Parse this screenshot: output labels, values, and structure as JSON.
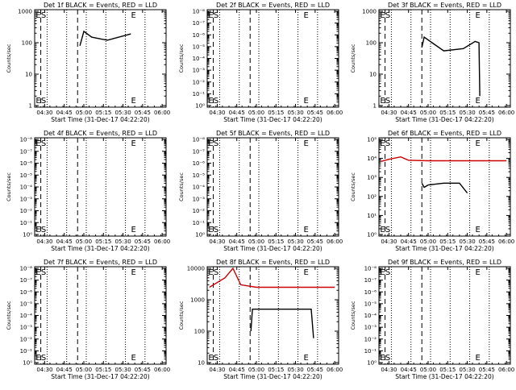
{
  "chart_data": [
    {
      "type": "line",
      "det": "1f",
      "title": "Det 1f BLACK = Events, RED = LLD",
      "ylabel": "Counts/sec",
      "xlabel": "Start Time (31-Dec-17 04:22:20)",
      "x_ticks": [
        "04:30",
        "04:45",
        "05:00",
        "05:15",
        "05:30",
        "05:45",
        "06:00"
      ],
      "y_scale": "log",
      "y_ticks": [
        "1",
        "10",
        "100",
        "1000"
      ],
      "markers": [
        {
          "label": "E",
          "time": "04:25"
        },
        {
          "label": "S",
          "time": "04:29"
        },
        {
          "label": "E",
          "time": "05:38"
        }
      ],
      "series": [
        {
          "color": "#000000",
          "values": [
            [
              4.95,
              80
            ],
            [
              5.0,
              230
            ],
            [
              5.1,
              150
            ],
            [
              5.3,
              120
            ],
            [
              5.6,
              190
            ]
          ]
        }
      ]
    },
    {
      "type": "line",
      "det": "2f",
      "title": "Det 2f BLACK = Events, RED = LLD",
      "ylabel": "Counts/sec",
      "xlabel": "Start Time (31-Dec-17 04:22:20)",
      "x_ticks": [
        "04:30",
        "04:45",
        "05:00",
        "05:15",
        "05:30",
        "05:45",
        "06:00"
      ],
      "y_scale": "log",
      "y_ticks": [
        "10⁰",
        "10⁻¹",
        "10⁻²",
        "10⁻³",
        "10⁻⁴",
        "10⁻⁵",
        "10⁻⁶",
        "10⁻⁷",
        "10⁻⁸"
      ],
      "markers": [
        {
          "label": "E",
          "time": "04:25"
        },
        {
          "label": "S",
          "time": "04:29"
        },
        {
          "label": "E",
          "time": "05:38"
        }
      ],
      "series": []
    },
    {
      "type": "line",
      "det": "3f",
      "title": "Det 3f BLACK = Events, RED = LLD",
      "ylabel": "Counts/sec",
      "xlabel": "Start Time (31-Dec-17 04:22:20)",
      "x_ticks": [
        "04:30",
        "04:45",
        "05:00",
        "05:15",
        "05:30",
        "05:45",
        "06:00"
      ],
      "y_scale": "log",
      "y_ticks": [
        "1",
        "10",
        "100",
        "1000"
      ],
      "markers": [
        {
          "label": "E",
          "time": "04:25"
        },
        {
          "label": "S",
          "time": "04:29"
        },
        {
          "label": "E",
          "time": "05:38"
        }
      ],
      "series": [
        {
          "color": "#000000",
          "values": [
            [
              4.92,
              70
            ],
            [
              4.95,
              150
            ],
            [
              5.05,
              100
            ],
            [
              5.2,
              55
            ],
            [
              5.45,
              65
            ],
            [
              5.6,
              110
            ],
            [
              5.65,
              100
            ],
            [
              5.66,
              2
            ]
          ]
        }
      ]
    },
    {
      "type": "line",
      "det": "4f",
      "title": "Det 4f BLACK = Events, RED = LLD",
      "ylabel": "Counts/sec",
      "xlabel": "Start Time (31-Dec-17 04:22:20)",
      "x_ticks": [
        "04:30",
        "04:45",
        "05:00",
        "05:15",
        "05:30",
        "05:45",
        "06:00"
      ],
      "y_scale": "log",
      "y_ticks": [
        "10⁰",
        "10⁻¹",
        "10⁻²",
        "10⁻³",
        "10⁻⁴",
        "10⁻⁵",
        "10⁻⁶",
        "10⁻⁷",
        "10⁻⁸"
      ],
      "markers": [
        {
          "label": "E",
          "time": "04:25"
        },
        {
          "label": "S",
          "time": "04:29"
        },
        {
          "label": "E",
          "time": "05:38"
        }
      ],
      "series": []
    },
    {
      "type": "line",
      "det": "5f",
      "title": "Det 5f BLACK = Events, RED = LLD",
      "ylabel": "Counts/sec",
      "xlabel": "Start Time (31-Dec-17 04:22:20)",
      "x_ticks": [
        "04:30",
        "04:45",
        "05:00",
        "05:15",
        "05:30",
        "05:45",
        "06:00"
      ],
      "y_scale": "log",
      "y_ticks": [
        "10⁰",
        "10⁻¹",
        "10⁻²",
        "10⁻³",
        "10⁻⁴",
        "10⁻⁵",
        "10⁻⁶",
        "10⁻⁷",
        "10⁻⁸"
      ],
      "markers": [
        {
          "label": "E",
          "time": "04:25"
        },
        {
          "label": "S",
          "time": "04:29"
        },
        {
          "label": "E",
          "time": "05:38"
        }
      ],
      "series": []
    },
    {
      "type": "line",
      "det": "6f",
      "title": "Det 6f BLACK = Events, RED = LLD",
      "ylabel": "Counts/sec",
      "xlabel": "Start Time (31-Dec-17 04:22:20)",
      "x_ticks": [
        "04:30",
        "04:45",
        "05:00",
        "05:15",
        "05:30",
        "05:45",
        "06:00"
      ],
      "y_scale": "log",
      "y_ticks": [
        "10⁰",
        "10¹",
        "10²",
        "10³",
        "10⁴",
        "10⁵"
      ],
      "markers": [
        {
          "label": "E",
          "time": "04:25"
        },
        {
          "label": "S",
          "time": "04:29"
        },
        {
          "label": "E",
          "time": "05:38"
        }
      ],
      "series": [
        {
          "color": "#cc0000",
          "values": [
            [
              4.4,
              7000
            ],
            [
              4.5,
              9000
            ],
            [
              4.65,
              12000
            ],
            [
              4.75,
              8000
            ],
            [
              5.0,
              7500
            ],
            [
              6.0,
              7500
            ]
          ]
        },
        {
          "color": "#000000",
          "values": [
            [
              4.92,
              500
            ],
            [
              4.95,
              300
            ],
            [
              5.0,
              400
            ],
            [
              5.2,
              500
            ],
            [
              5.4,
              500
            ],
            [
              5.5,
              150
            ]
          ]
        }
      ]
    },
    {
      "type": "line",
      "det": "7f",
      "title": "Det 7f BLACK = Events, RED = LLD",
      "ylabel": "Counts/sec",
      "xlabel": "Start Time (31-Dec-17 04:22:20)",
      "x_ticks": [
        "04:30",
        "04:45",
        "05:00",
        "05:15",
        "05:30",
        "05:45",
        "06:00"
      ],
      "y_scale": "log",
      "y_ticks": [
        "10⁰",
        "10⁻¹",
        "10⁻²",
        "10⁻³",
        "10⁻⁴",
        "10⁻⁵",
        "10⁻⁶",
        "10⁻⁷",
        "10⁻⁸"
      ],
      "markers": [
        {
          "label": "E",
          "time": "04:25"
        },
        {
          "label": "S",
          "time": "04:29"
        },
        {
          "label": "E",
          "time": "05:38"
        }
      ],
      "series": []
    },
    {
      "type": "line",
      "det": "8f",
      "title": "Det 8f BLACK = Events, RED = LLD",
      "ylabel": "Counts/sec",
      "xlabel": "Start Time (31-Dec-17 04:22:20)",
      "x_ticks": [
        "04:30",
        "04:45",
        "05:00",
        "05:15",
        "05:30",
        "05:45",
        "06:00"
      ],
      "y_scale": "log",
      "y_ticks": [
        "10",
        "100",
        "1000",
        "10000"
      ],
      "markers": [
        {
          "label": "E",
          "time": "04:25"
        },
        {
          "label": "S",
          "time": "04:29"
        },
        {
          "label": "E",
          "time": "05:38"
        }
      ],
      "series": [
        {
          "color": "#cc0000",
          "values": [
            [
              4.4,
              2500
            ],
            [
              4.6,
              5000
            ],
            [
              4.7,
              10000
            ],
            [
              4.8,
              3000
            ],
            [
              5.0,
              2500
            ],
            [
              6.0,
              2500
            ]
          ]
        },
        {
          "color": "#000000",
          "values": [
            [
              4.93,
              100
            ],
            [
              4.95,
              500
            ],
            [
              5.7,
              500
            ],
            [
              5.73,
              60
            ]
          ]
        }
      ]
    },
    {
      "type": "line",
      "det": "9f",
      "title": "Det 9f BLACK = Events, RED = LLD",
      "ylabel": "Counts/sec",
      "xlabel": "Start Time (31-Dec-17 04:22:20)",
      "x_ticks": [
        "04:30",
        "04:45",
        "05:00",
        "05:15",
        "05:30",
        "05:45",
        "06:00"
      ],
      "y_scale": "log",
      "y_ticks": [
        "10⁰",
        "10⁻¹",
        "10⁻²",
        "10⁻³",
        "10⁻⁴",
        "10⁻⁵",
        "10⁻⁶",
        "10⁻⁷",
        "10⁻⁸"
      ],
      "markers": [
        {
          "label": "E",
          "time": "04:25"
        },
        {
          "label": "S",
          "time": "04:29"
        },
        {
          "label": "E",
          "time": "05:38"
        }
      ],
      "series": []
    }
  ]
}
